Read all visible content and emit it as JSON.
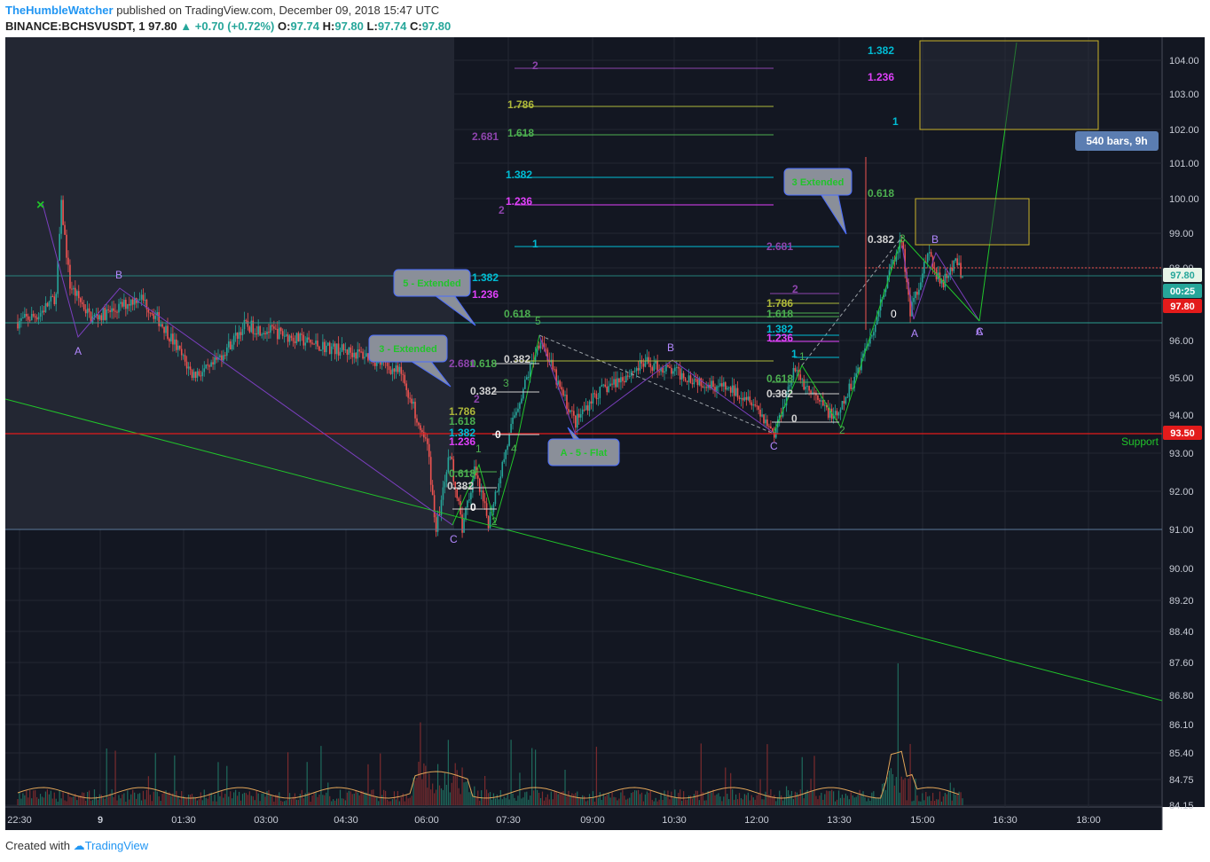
{
  "header": {
    "author": "TheHumbleWatcher",
    "published_text": "published on TradingView.com, December 09, 2018 15:47 UTC",
    "symbol": "BINANCE:BCHSVUSDT, 1",
    "last": "97.80",
    "change": "+0.70 (+0.72%)",
    "o_label": "O:",
    "o": "97.74",
    "h_label": "H:",
    "h": "97.80",
    "l_label": "L:",
    "l": "97.74",
    "c_label": "C:",
    "c": "97.80"
  },
  "footer": {
    "created_with": "Created with",
    "brand": "TradingView"
  },
  "colors": {
    "background": "#131722",
    "up": "#26a69a",
    "down": "#ef5350",
    "support": "#e31b1b",
    "trend": "#21c42a",
    "wave": "#8e44ad",
    "fib_cyan": "#00bcd4",
    "fib_magenta": "#e040fb",
    "fib_green": "#4caf50",
    "fib_olive": "#aeb83a",
    "target_box": "#c9b32a"
  },
  "chart_data": {
    "type": "candlestick",
    "symbol": "BINANCE:BCHSVUSDT",
    "timeframe": "1",
    "x_ticks": [
      "22:30",
      "9",
      "01:30",
      "03:00",
      "04:30",
      "06:00",
      "07:30",
      "09:00",
      "10:30",
      "12:00",
      "13:30",
      "15:00",
      "16:30",
      "18:00"
    ],
    "y_ticks": [
      "104.00",
      "103.00",
      "102.00",
      "101.00",
      "100.00",
      "99.00",
      "98.00",
      "97.00",
      "96.00",
      "95.00",
      "94.00",
      "93.00",
      "92.00",
      "91.00",
      "90.00",
      "89.20",
      "88.40",
      "87.60",
      "86.80",
      "86.10",
      "85.40",
      "84.75",
      "84.15"
    ],
    "ylim": [
      84.15,
      104.6
    ],
    "price_path": [
      [
        0,
        96.5
      ],
      [
        12,
        96.7
      ],
      [
        22,
        97.2
      ],
      [
        25,
        99.8
      ],
      [
        30,
        97.5
      ],
      [
        42,
        96.6
      ],
      [
        55,
        96.8
      ],
      [
        70,
        97.2
      ],
      [
        85,
        96.3
      ],
      [
        100,
        95.1
      ],
      [
        110,
        95.2
      ],
      [
        130,
        96.4
      ],
      [
        150,
        96.2
      ],
      [
        170,
        95.9
      ],
      [
        200,
        95.6
      ],
      [
        220,
        95.1
      ],
      [
        235,
        93.2
      ],
      [
        240,
        91.0
      ],
      [
        248,
        93.0
      ],
      [
        255,
        91.0
      ],
      [
        262,
        92.5
      ],
      [
        270,
        91.2
      ],
      [
        285,
        94.0
      ],
      [
        300,
        96.1
      ],
      [
        310,
        94.8
      ],
      [
        320,
        93.8
      ],
      [
        330,
        94.5
      ],
      [
        360,
        95.4
      ],
      [
        380,
        95.1
      ],
      [
        400,
        94.8
      ],
      [
        420,
        94.5
      ],
      [
        434,
        93.5
      ],
      [
        445,
        95.2
      ],
      [
        460,
        94.3
      ],
      [
        470,
        93.9
      ],
      [
        480,
        95.0
      ],
      [
        492,
        96.5
      ],
      [
        500,
        97.9
      ],
      [
        507,
        98.8
      ],
      [
        512,
        96.7
      ],
      [
        522,
        98.4
      ],
      [
        530,
        97.5
      ],
      [
        538,
        98.2
      ],
      [
        542,
        97.8
      ]
    ],
    "support_line": {
      "label": "Support",
      "value": "93.50"
    },
    "price_label": "97.80",
    "countdown": "00:25",
    "marker_label": "97.80",
    "range_label": "540 bars, 9h",
    "callouts": [
      "3 Extended",
      "5 - Extended",
      "3 - Extended",
      "A - 5 - Flat"
    ],
    "fib_labels_top": [
      "1.382",
      "1.236",
      "1"
    ],
    "fib_labels_mid": [
      "2",
      "1.786",
      "1.618",
      "2.681",
      "1.382",
      "1.236",
      "2",
      "1",
      "0.618"
    ],
    "fib_labels_right": [
      "0.618",
      "2.681",
      "0.382",
      "2",
      "1.786",
      "1.618",
      "1.382",
      "1.236",
      "1",
      "0.618",
      "0.382",
      "0"
    ],
    "fib_labels_left": [
      "1.382",
      "1.236",
      "0.618",
      "1.618",
      "1.786",
      "2.681",
      "0.382",
      "1.382",
      "1.236",
      "0.618",
      "0.382",
      "0",
      "0.382",
      "0",
      "2"
    ],
    "wave_labels": [
      "A",
      "B",
      "C",
      "A",
      "B",
      "C",
      "A",
      "B",
      "C",
      "1",
      "2",
      "3",
      "4",
      "5",
      "0",
      "1",
      "2",
      "3"
    ],
    "volume_note": ""
  }
}
